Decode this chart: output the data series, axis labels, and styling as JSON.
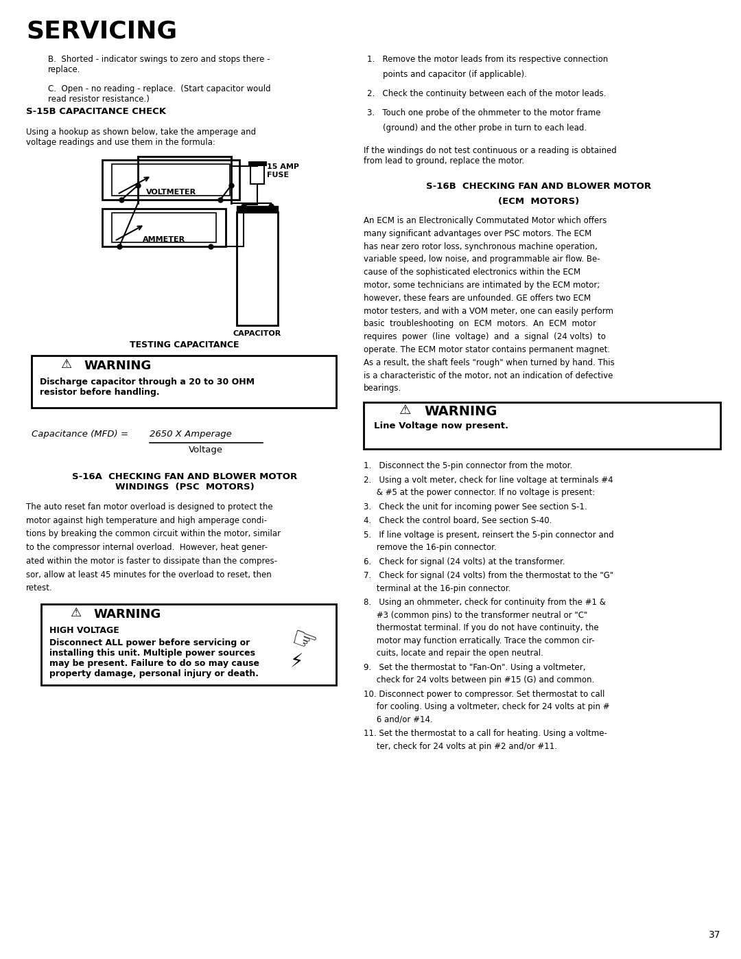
{
  "page_width": 10.8,
  "page_height": 13.97,
  "bg_color": "#ffffff",
  "title": "SERVICING",
  "intro_b": "B.  Shorted - indicator swings to zero and stops there -\nreplace.",
  "intro_c": "C.  Open - no reading - replace.  (Start capacitor would\nread resistor resistance.)",
  "s15b_header": "S-15B CAPACITANCE CHECK",
  "s15b_body": "Using a hookup as shown below, take the amperage and\nvoltage readings and use them in the formula:",
  "warning1_title": "WARNING",
  "warning1_body": "Discharge capacitor through a 20 to 30 OHM\nresistor before handling.",
  "formula_italic": "Capacitance (MFD) = ",
  "formula_underline": "2650 X Amperage",
  "formula_denom": "Voltage",
  "s16a_header": "S-16A  CHECKING FAN AND BLOWER MOTOR\nWINDINGS  (PSC  MOTORS)",
  "s16a_body": "The auto reset fan motor overload is designed to protect the\nmotor against high temperature and high amperage condi-\ntions by breaking the common circuit within the motor, similar\nto the compressor internal overload.  However, heat gener-\nated within the motor is faster to dissipate than the compres-\nsor, allow at least 45 minutes for the overload to reset, then\nretest.",
  "warning2_title": "WARNING",
  "warning2_sub": "HIGH VOLTAGE",
  "warning2_body": "Disconnect ALL power before servicing or\ninstalling this unit. Multiple power sources\nmay be present. Failure to do so may cause\nproperty damage, personal injury or death.",
  "right_items_1": [
    "1.   Remove the motor leads from its respective connection\n     points and capacitor (if applicable).",
    "2.   Check the continuity between each of the motor leads.",
    "3.   Touch one probe of the ohmmeter to the motor frame\n     (ground) and the other probe in turn to each lead."
  ],
  "right_para_1": "If the windings do not test continuous or a reading is obtained\nfrom lead to ground, replace the motor.",
  "s16b_header_line1": "S-16B  CHECKING FAN AND BLOWER MOTOR",
  "s16b_header_line2": "(ECM  MOTORS)",
  "s16b_body_lines": [
    "An ECM is an Electronically Commutated Motor which offers",
    "many significant advantages over PSC motors. The ECM",
    "has near zero rotor loss, synchronous machine operation,",
    "variable speed, low noise, and programmable air flow. Be-",
    "cause of the sophisticated electronics within the ECM",
    "motor, some technicians are intimated by the ECM motor;",
    "however, these fears are unfounded. GE offers two ECM",
    "motor testers, and with a VOM meter, one can easily perform",
    "basic  troubleshooting  on  ECM  motors.  An  ECM  motor",
    "requires  power  (line  voltage)  and  a  signal  (24 volts)  to",
    "operate. The ECM motor stator contains permanent magnet.",
    "As a result, the shaft feels \"rough\" when turned by hand. This",
    "is a characteristic of the motor, not an indication of defective",
    "bearings."
  ],
  "warning3_title": "WARNING",
  "warning3_body": "Line Voltage now present.",
  "right_items_2": [
    "1.   Disconnect the 5-pin connector from the motor.",
    "2.   Using a volt meter, check for line voltage at terminals #4\n     & #5 at the power connector. If no voltage is present:",
    "3.   Check the unit for incoming power See section S-1.",
    "4.   Check the control board, See section S-40.",
    "5.   If line voltage is present, reinsert the 5-pin connector and\n     remove the 16-pin connector.",
    "6.   Check for signal (24 volts) at the transformer.",
    "7.   Check for signal (24 volts) from the thermostat to the \"G\"\n     terminal at the 16-pin connector.",
    "8.   Using an ohmmeter, check for continuity from the #1 &\n     #3 (common pins) to the transformer neutral or \"C\"\n     thermostat terminal. If you do not have continuity, the\n     motor may function erratically. Trace the common cir-\n     cuits, locate and repair the open neutral.",
    "9.   Set the thermostat to \"Fan-On\". Using a voltmeter,\n     check for 24 volts between pin #15 (G) and common.",
    "10. Disconnect power to compressor. Set thermostat to call\n     for cooling. Using a voltmeter, check for 24 volts at pin #\n     6 and/or #14.",
    "11. Set the thermostat to a call for heating. Using a voltme-\n     ter, check for 24 volts at pin #2 and/or #11."
  ],
  "page_num": "37",
  "diag_voltmeter": "VOLTMETER",
  "diag_ammeter": "AMMETER",
  "diag_fuse": "15 AMP\nFUSE",
  "diag_capacitor": "CAPACITOR",
  "diag_caption": "TESTING CAPACITANCE"
}
